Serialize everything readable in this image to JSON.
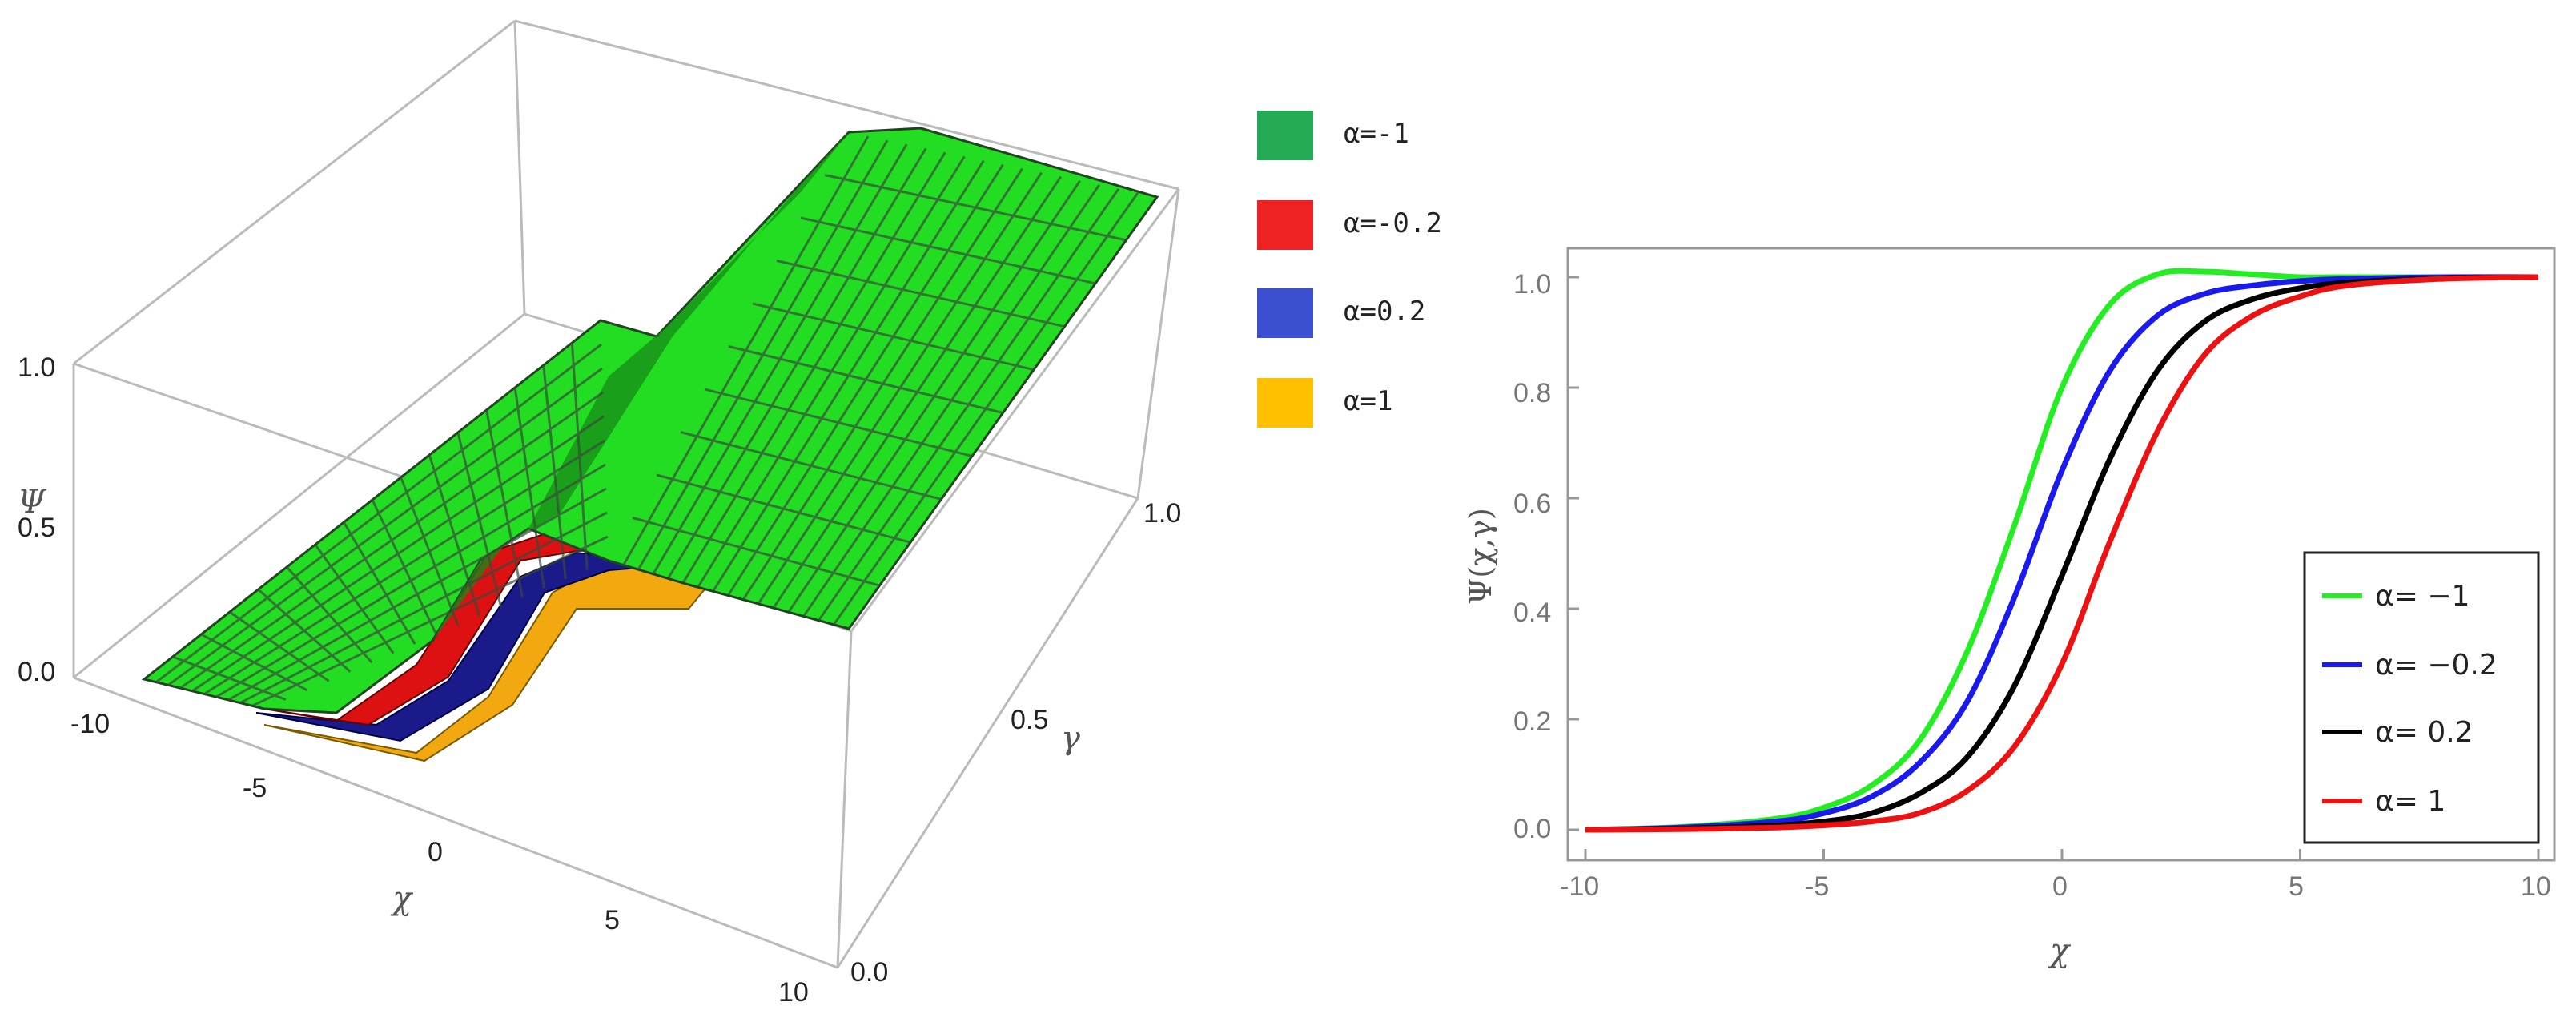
{
  "chart_data": [
    {
      "type": "surface",
      "xlabel": "χ",
      "ylabel": "γ",
      "zlabel": "Ψ",
      "xlim": [
        -10,
        10
      ],
      "ylim": [
        0,
        1
      ],
      "zlim": [
        0,
        1
      ],
      "x_ticks": [
        "-10",
        "-5",
        "0",
        "5",
        "10"
      ],
      "y_ticks": [
        "0.0",
        "0.5",
        "1.0"
      ],
      "z_ticks": [
        "0.0",
        "0.5",
        "1.0"
      ],
      "legend": [
        {
          "label": "α=-1",
          "color": "#22aa55"
        },
        {
          "label": "α=-0.2",
          "color": "#ee2222"
        },
        {
          "label": "α=0.2",
          "color": "#3b4fd0"
        },
        {
          "label": "α=1",
          "color": "#ffc000"
        }
      ],
      "surface_colors": {
        "top": "#22dd22",
        "mesh": "#444444"
      }
    },
    {
      "type": "line",
      "xlabel": "χ",
      "ylabel": "Ψ(χ,γ)",
      "xlim": [
        -10,
        10
      ],
      "ylim": [
        0,
        1
      ],
      "x_ticks": [
        "-10",
        "-5",
        "0",
        "5",
        "10"
      ],
      "y_ticks": [
        "0.0",
        "0.2",
        "0.4",
        "0.6",
        "0.8",
        "1.0"
      ],
      "legend_position": "bottom-right",
      "series": [
        {
          "name": "α= −1",
          "color": "#22ee22",
          "x": [
            -10,
            -8,
            -6,
            -5,
            -4,
            -3,
            -2,
            -1,
            0,
            1,
            2,
            3,
            4,
            5,
            6,
            8,
            10
          ],
          "y": [
            0.0,
            0.005,
            0.02,
            0.04,
            0.08,
            0.16,
            0.32,
            0.55,
            0.8,
            0.95,
            1.005,
            1.01,
            1.005,
            1.0,
            1.0,
            1.0,
            1.0
          ]
        },
        {
          "name": "α= −0.2",
          "color": "#1a1aee",
          "x": [
            -10,
            -8,
            -6,
            -5,
            -4,
            -3,
            -2,
            -1,
            0,
            1,
            2,
            3,
            4,
            5,
            6,
            8,
            10
          ],
          "y": [
            0.0,
            0.004,
            0.015,
            0.03,
            0.06,
            0.12,
            0.23,
            0.42,
            0.65,
            0.83,
            0.93,
            0.97,
            0.985,
            0.993,
            0.997,
            1.0,
            1.0
          ]
        },
        {
          "name": "α= 0.2",
          "color": "#000000",
          "x": [
            -10,
            -8,
            -6,
            -5,
            -4,
            -3,
            -2,
            -1,
            0,
            1,
            2,
            3,
            4,
            5,
            6,
            8,
            10
          ],
          "y": [
            0.0,
            0.002,
            0.008,
            0.015,
            0.03,
            0.065,
            0.13,
            0.26,
            0.46,
            0.67,
            0.83,
            0.92,
            0.96,
            0.98,
            0.99,
            0.998,
            1.0
          ]
        },
        {
          "name": "α= 1",
          "color": "#ee1111",
          "x": [
            -10,
            -8,
            -6,
            -5,
            -4,
            -3,
            -2,
            -1,
            0,
            1,
            2,
            3,
            4,
            5,
            6,
            8,
            10
          ],
          "y": [
            0.0,
            0.001,
            0.004,
            0.008,
            0.015,
            0.03,
            0.07,
            0.15,
            0.3,
            0.52,
            0.72,
            0.86,
            0.93,
            0.965,
            0.985,
            0.997,
            1.0
          ]
        }
      ]
    }
  ]
}
